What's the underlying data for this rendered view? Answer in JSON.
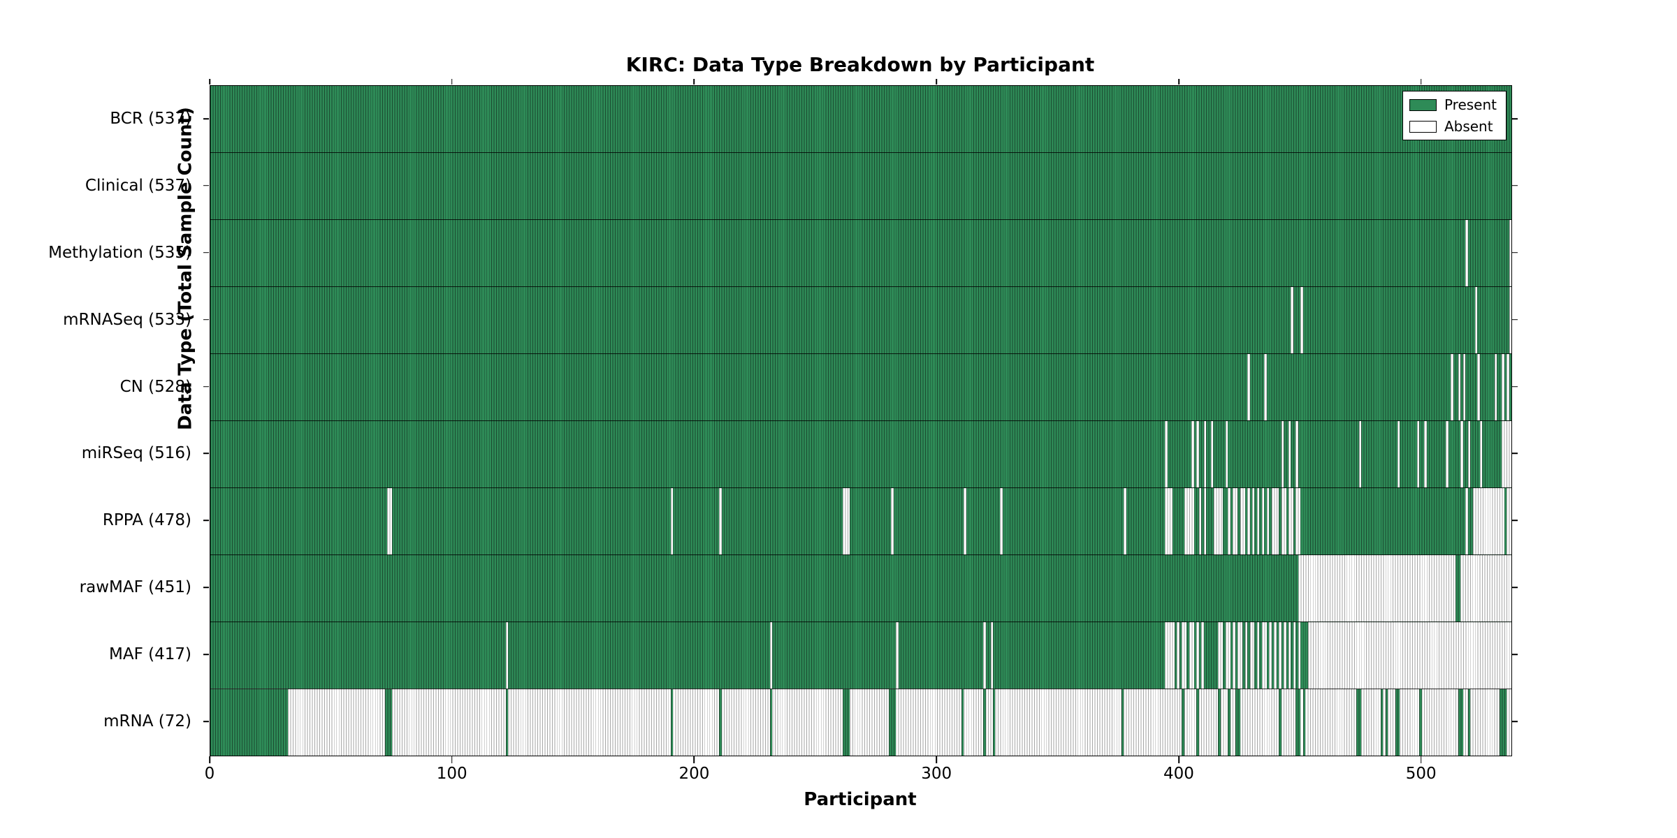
{
  "figure": {
    "title": "KIRC: Data Type Breakdown by Participant",
    "xlabel": "Participant",
    "ylabel": "Data Type (Total Sample Count)",
    "legend": {
      "present_label": "Present",
      "absent_label": "Absent"
    },
    "colors": {
      "present": "#2E8B57",
      "present_edge": "#1b4a30",
      "absent": "#ffffff",
      "absent_edge": "#a6a6a6",
      "frame": "#000000"
    }
  },
  "chart_data": {
    "type": "heatmap",
    "title": "KIRC: Data Type Breakdown by Participant",
    "xlabel": "Participant",
    "ylabel": "Data Type (Total Sample Count)",
    "legend_entries": [
      "Present",
      "Absent"
    ],
    "legend_position": "upper right",
    "grid": false,
    "n_participants": 537,
    "x_range": [
      0,
      537
    ],
    "x_ticks": [
      0,
      100,
      200,
      300,
      400,
      500
    ],
    "rows_note": "mode=absent: row is Present(green) everywhere except listed participant ranges; mode=present: row is Absent(white) everywhere except listed ranges. Ranges are single indices or [start,end] inclusive, 0-based participant index.",
    "rows": [
      {
        "data_type": "BCR",
        "label": "BCR (537)",
        "present_count": 537,
        "mode": "absent",
        "ranges": []
      },
      {
        "data_type": "Clinical",
        "label": "Clinical (537)",
        "present_count": 537,
        "mode": "absent",
        "ranges": []
      },
      {
        "data_type": "Methylation",
        "label": "Methylation (535)",
        "present_count": 535,
        "mode": "absent",
        "ranges": [
          518,
          536
        ]
      },
      {
        "data_type": "mRNASeq",
        "label": "mRNASeq (533)",
        "present_count": 533,
        "mode": "absent",
        "ranges": [
          446,
          450,
          522,
          536
        ]
      },
      {
        "data_type": "CN",
        "label": "CN (528)",
        "present_count": 528,
        "mode": "absent",
        "ranges": [
          428,
          435,
          512,
          515,
          517,
          523,
          530,
          533,
          535
        ]
      },
      {
        "data_type": "miRSeq",
        "label": "miRSeq (516)",
        "present_count": 516,
        "mode": "absent",
        "ranges": [
          394,
          405,
          407,
          410,
          413,
          419,
          442,
          445,
          448,
          474,
          490,
          498,
          501,
          510,
          516,
          519,
          524,
          [
            533,
            536
          ]
        ]
      },
      {
        "data_type": "RPPA",
        "label": "RPPA (478)",
        "present_count": 478,
        "mode": "absent",
        "ranges": [
          [
            73,
            74
          ],
          190,
          210,
          [
            261,
            263
          ],
          281,
          311,
          326,
          377,
          [
            394,
            396
          ],
          [
            402,
            405
          ],
          408,
          410,
          [
            414,
            417
          ],
          420,
          [
            422,
            423
          ],
          [
            425,
            426
          ],
          428,
          430,
          432,
          434,
          436,
          [
            438,
            440
          ],
          [
            442,
            443
          ],
          [
            445,
            446
          ],
          [
            448,
            449
          ],
          518,
          [
            521,
            533
          ],
          [
            535,
            536
          ]
        ]
      },
      {
        "data_type": "rawMAF",
        "label": "rawMAF (451)",
        "present_count": 451,
        "mode": "absent",
        "ranges": [
          [
            449,
            513
          ],
          [
            516,
            536
          ]
        ]
      },
      {
        "data_type": "MAF",
        "label": "MAF (417)",
        "present_count": 417,
        "mode": "absent",
        "ranges": [
          122,
          231,
          283,
          319,
          322,
          [
            394,
            397
          ],
          399,
          [
            401,
            402
          ],
          [
            404,
            405
          ],
          407,
          409,
          [
            416,
            417
          ],
          [
            419,
            420
          ],
          422,
          [
            424,
            425
          ],
          427,
          [
            429,
            430
          ],
          432,
          [
            434,
            435
          ],
          437,
          439,
          441,
          443,
          445,
          447,
          449,
          [
            453,
            536
          ]
        ]
      },
      {
        "data_type": "mRNA",
        "label": "mRNA (72)",
        "present_count": 72,
        "mode": "present",
        "ranges": [
          [
            0,
            31
          ],
          [
            72,
            74
          ],
          122,
          190,
          210,
          231,
          [
            261,
            263
          ],
          [
            280,
            282
          ],
          310,
          319,
          323,
          376,
          401,
          407,
          416,
          420,
          [
            423,
            424
          ],
          441,
          [
            448,
            449
          ],
          451,
          [
            473,
            474
          ],
          483,
          485,
          489,
          490,
          499,
          [
            515,
            516
          ],
          519,
          [
            532,
            534
          ]
        ]
      }
    ]
  }
}
